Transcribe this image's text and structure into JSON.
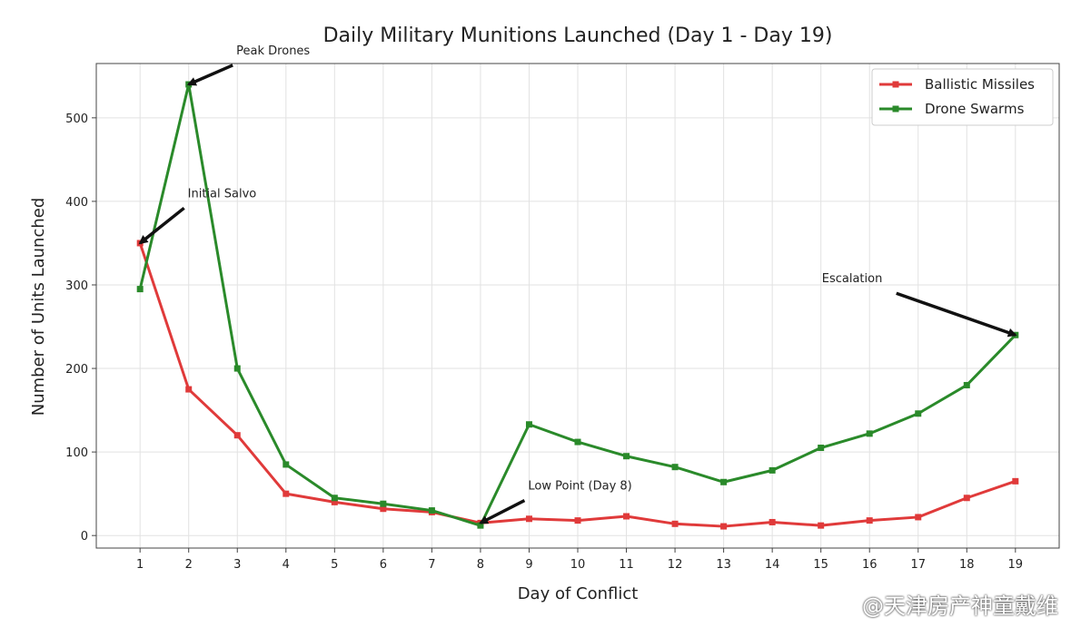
{
  "chart_data": {
    "type": "line",
    "title": "Daily Military Munitions Launched (Day 1 - Day 19)",
    "xlabel": "Day of Conflict",
    "ylabel": "Number of Units Launched",
    "x": [
      1,
      2,
      3,
      4,
      5,
      6,
      7,
      8,
      9,
      10,
      11,
      12,
      13,
      14,
      15,
      16,
      17,
      18,
      19
    ],
    "ylim": [
      -15,
      565
    ],
    "xlim": [
      0.1,
      19.9
    ],
    "yticks": [
      0,
      100,
      200,
      300,
      400,
      500
    ],
    "grid": true,
    "legend_position": "top-right",
    "series": [
      {
        "name": "Ballistic Missiles",
        "color": "#e03a3a",
        "values": [
          350,
          175,
          120,
          50,
          40,
          32,
          28,
          15,
          20,
          18,
          23,
          14,
          11,
          16,
          12,
          18,
          22,
          45,
          65
        ]
      },
      {
        "name": "Drone Swarms",
        "color": "#2a8a2a",
        "values": [
          295,
          540,
          200,
          85,
          45,
          38,
          30,
          12,
          133,
          112,
          95,
          82,
          64,
          78,
          105,
          122,
          146,
          180,
          240
        ]
      }
    ],
    "annotations": [
      {
        "text": "Peak Drones",
        "target": [
          2,
          540
        ],
        "text_at": [
          2.98,
          576
        ]
      },
      {
        "text": "Initial Salvo",
        "target": [
          1,
          350
        ],
        "text_at": [
          1.98,
          405
        ]
      },
      {
        "text": "Low Point (Day 8)",
        "target": [
          8,
          15
        ],
        "text_at": [
          8.98,
          55
        ]
      },
      {
        "text": "Escalation",
        "target": [
          19,
          240
        ],
        "text_at": [
          15.02,
          303
        ]
      }
    ]
  },
  "watermark": "@天津房产神童戴维"
}
